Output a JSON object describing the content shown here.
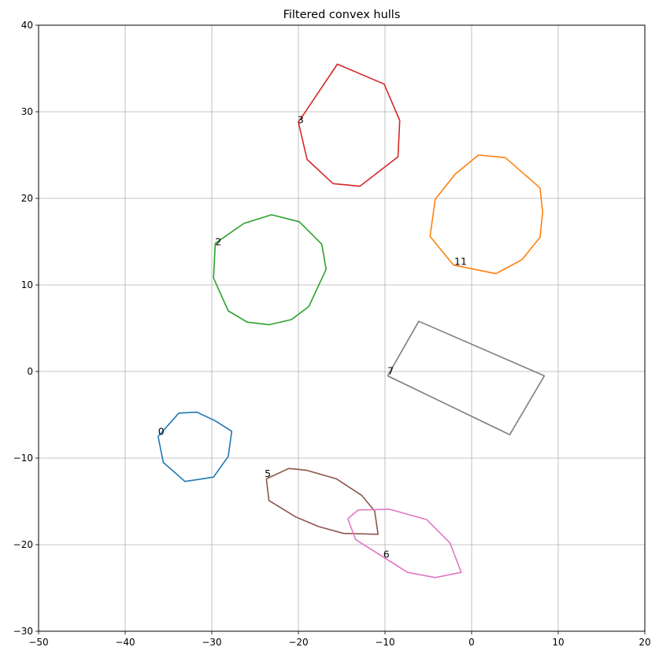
{
  "chart_data": {
    "type": "line",
    "title": "Filtered convex hulls",
    "xlabel": "",
    "ylabel": "",
    "xlim": [
      -50,
      20
    ],
    "ylim": [
      -30,
      40
    ],
    "x_ticks": [
      -50,
      -40,
      -30,
      -20,
      -10,
      0,
      10,
      20
    ],
    "y_ticks": [
      -30,
      -20,
      -10,
      0,
      10,
      20,
      30,
      40
    ],
    "x_tick_labels": [
      "−50",
      "−40",
      "−30",
      "−20",
      "−10",
      "0",
      "10",
      "20"
    ],
    "y_tick_labels": [
      "−30",
      "−20",
      "−10",
      "0",
      "10",
      "20",
      "30",
      "40"
    ],
    "grid": true,
    "series": [
      {
        "label": "0",
        "color": "#1f77b4",
        "label_pos": [
          -36.2,
          -7.3
        ],
        "points": [
          [
            -36.2,
            -7.5
          ],
          [
            -33.8,
            -4.8
          ],
          [
            -31.7,
            -4.7
          ],
          [
            -29.6,
            -5.7
          ],
          [
            -27.7,
            -6.9
          ],
          [
            -28.1,
            -9.8
          ],
          [
            -29.8,
            -12.2
          ],
          [
            -33.1,
            -12.7
          ],
          [
            -35.6,
            -10.5
          ],
          [
            -36.2,
            -7.5
          ]
        ]
      },
      {
        "label": "11",
        "color": "#ff7f0e",
        "label_pos": [
          -2.0,
          12.3
        ],
        "points": [
          [
            -2.1,
            12.3
          ],
          [
            2.8,
            11.3
          ],
          [
            5.8,
            12.9
          ],
          [
            7.9,
            15.5
          ],
          [
            8.2,
            18.4
          ],
          [
            7.9,
            21.2
          ],
          [
            3.9,
            24.7
          ],
          [
            0.8,
            25.0
          ],
          [
            -1.9,
            22.8
          ],
          [
            -4.2,
            19.9
          ],
          [
            -4.8,
            15.6
          ],
          [
            -2.1,
            12.3
          ]
        ]
      },
      {
        "label": "2",
        "color": "#2ca02c",
        "label_pos": [
          -29.6,
          14.6
        ],
        "points": [
          [
            -29.6,
            14.8
          ],
          [
            -26.3,
            17.1
          ],
          [
            -23.1,
            18.1
          ],
          [
            -19.9,
            17.3
          ],
          [
            -17.3,
            14.7
          ],
          [
            -16.8,
            11.8
          ],
          [
            -18.8,
            7.5
          ],
          [
            -20.8,
            6.0
          ],
          [
            -23.4,
            5.4
          ],
          [
            -25.9,
            5.7
          ],
          [
            -28.1,
            7.0
          ],
          [
            -29.8,
            10.8
          ],
          [
            -29.6,
            14.8
          ]
        ]
      },
      {
        "label": "3",
        "color": "#d62728",
        "label_pos": [
          -20.1,
          28.7
        ],
        "points": [
          [
            -20.0,
            28.8
          ],
          [
            -15.5,
            35.5
          ],
          [
            -10.1,
            33.2
          ],
          [
            -8.3,
            29.0
          ],
          [
            -8.5,
            24.8
          ],
          [
            -12.9,
            21.4
          ],
          [
            -16.0,
            21.7
          ],
          [
            -19.0,
            24.5
          ],
          [
            -20.0,
            28.8
          ]
        ]
      },
      {
        "label": "5",
        "color": "#8c564b",
        "label_pos": [
          -23.9,
          -12.2
        ],
        "points": [
          [
            -23.7,
            -12.4
          ],
          [
            -21.1,
            -11.2
          ],
          [
            -19.1,
            -11.4
          ],
          [
            -15.6,
            -12.4
          ],
          [
            -12.7,
            -14.3
          ],
          [
            -11.2,
            -16.1
          ],
          [
            -10.8,
            -18.8
          ],
          [
            -14.8,
            -18.7
          ],
          [
            -17.7,
            -17.9
          ],
          [
            -20.3,
            -16.8
          ],
          [
            -23.4,
            -14.9
          ],
          [
            -23.7,
            -12.4
          ]
        ]
      },
      {
        "label": "6",
        "color": "#e377c2",
        "label_pos": [
          -10.2,
          -21.5
        ],
        "points": [
          [
            -14.3,
            -17.0
          ],
          [
            -13.1,
            -16.0
          ],
          [
            -9.5,
            -15.9
          ],
          [
            -5.2,
            -17.1
          ],
          [
            -2.5,
            -19.8
          ],
          [
            -1.2,
            -23.2
          ],
          [
            -4.2,
            -23.8
          ],
          [
            -7.4,
            -23.2
          ],
          [
            -13.4,
            -19.4
          ],
          [
            -14.3,
            -17.0
          ]
        ]
      },
      {
        "label": "7",
        "color": "#7f7f7f",
        "label_pos": [
          -9.7,
          -0.3
        ],
        "points": [
          [
            -9.7,
            -0.5
          ],
          [
            -6.1,
            5.8
          ],
          [
            8.4,
            -0.5
          ],
          [
            4.4,
            -7.3
          ],
          [
            -9.7,
            -0.5
          ]
        ]
      }
    ]
  }
}
